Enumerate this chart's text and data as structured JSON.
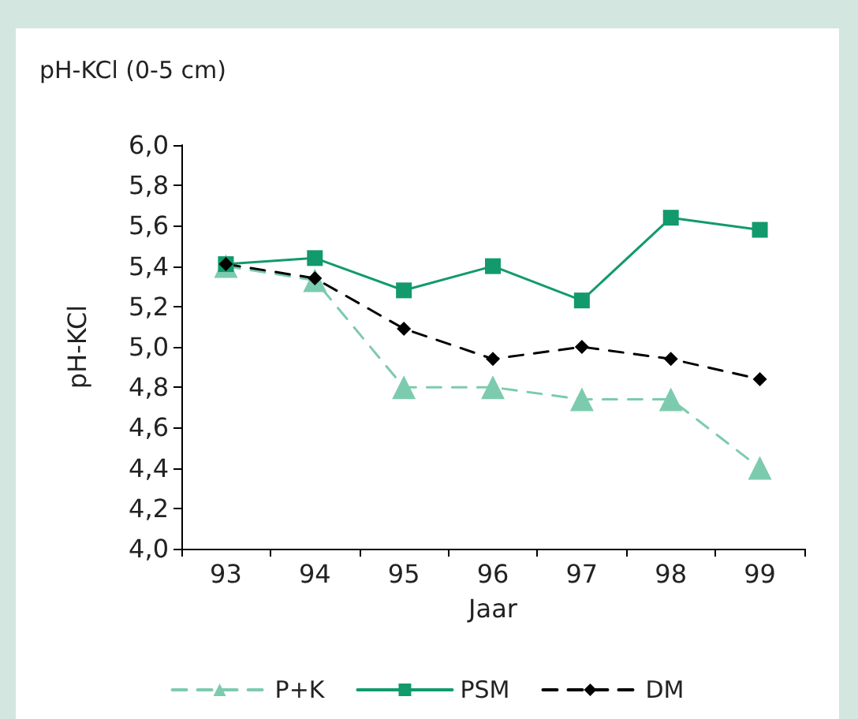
{
  "chart_data": {
    "type": "line",
    "title": "pH-KCl (0-5 cm)",
    "xlabel": "Jaar",
    "ylabel": "pH-KCl",
    "categories": [
      "93",
      "94",
      "95",
      "96",
      "97",
      "98",
      "99"
    ],
    "series": [
      {
        "name": "P+K",
        "color": "#7dcbae",
        "marker": "triangle",
        "line_style": "dashed",
        "values": [
          5.4,
          5.33,
          4.8,
          4.8,
          4.74,
          4.74,
          4.4
        ]
      },
      {
        "name": "PSM",
        "color": "#129a6c",
        "marker": "square",
        "line_style": "solid",
        "values": [
          5.41,
          5.44,
          5.28,
          5.4,
          5.23,
          5.64,
          5.58
        ]
      },
      {
        "name": "DM",
        "color": "#000000",
        "marker": "diamond",
        "line_style": "dashed",
        "values": [
          5.41,
          5.34,
          5.09,
          4.94,
          5.0,
          4.94,
          4.84
        ]
      }
    ],
    "ylim": [
      4.0,
      6.0
    ],
    "yticks": [
      {
        "value": 4.0,
        "label": "4,0"
      },
      {
        "value": 4.2,
        "label": "4,2"
      },
      {
        "value": 4.4,
        "label": "4,4"
      },
      {
        "value": 4.6,
        "label": "4,6"
      },
      {
        "value": 4.8,
        "label": "4,8"
      },
      {
        "value": 5.0,
        "label": "5,0"
      },
      {
        "value": 5.2,
        "label": "5,2"
      },
      {
        "value": 5.4,
        "label": "5,4"
      },
      {
        "value": 5.6,
        "label": "5,6"
      },
      {
        "value": 5.8,
        "label": "5,8"
      },
      {
        "value": 6.0,
        "label": "6,0"
      }
    ],
    "grid": false,
    "legend": "bottom"
  }
}
